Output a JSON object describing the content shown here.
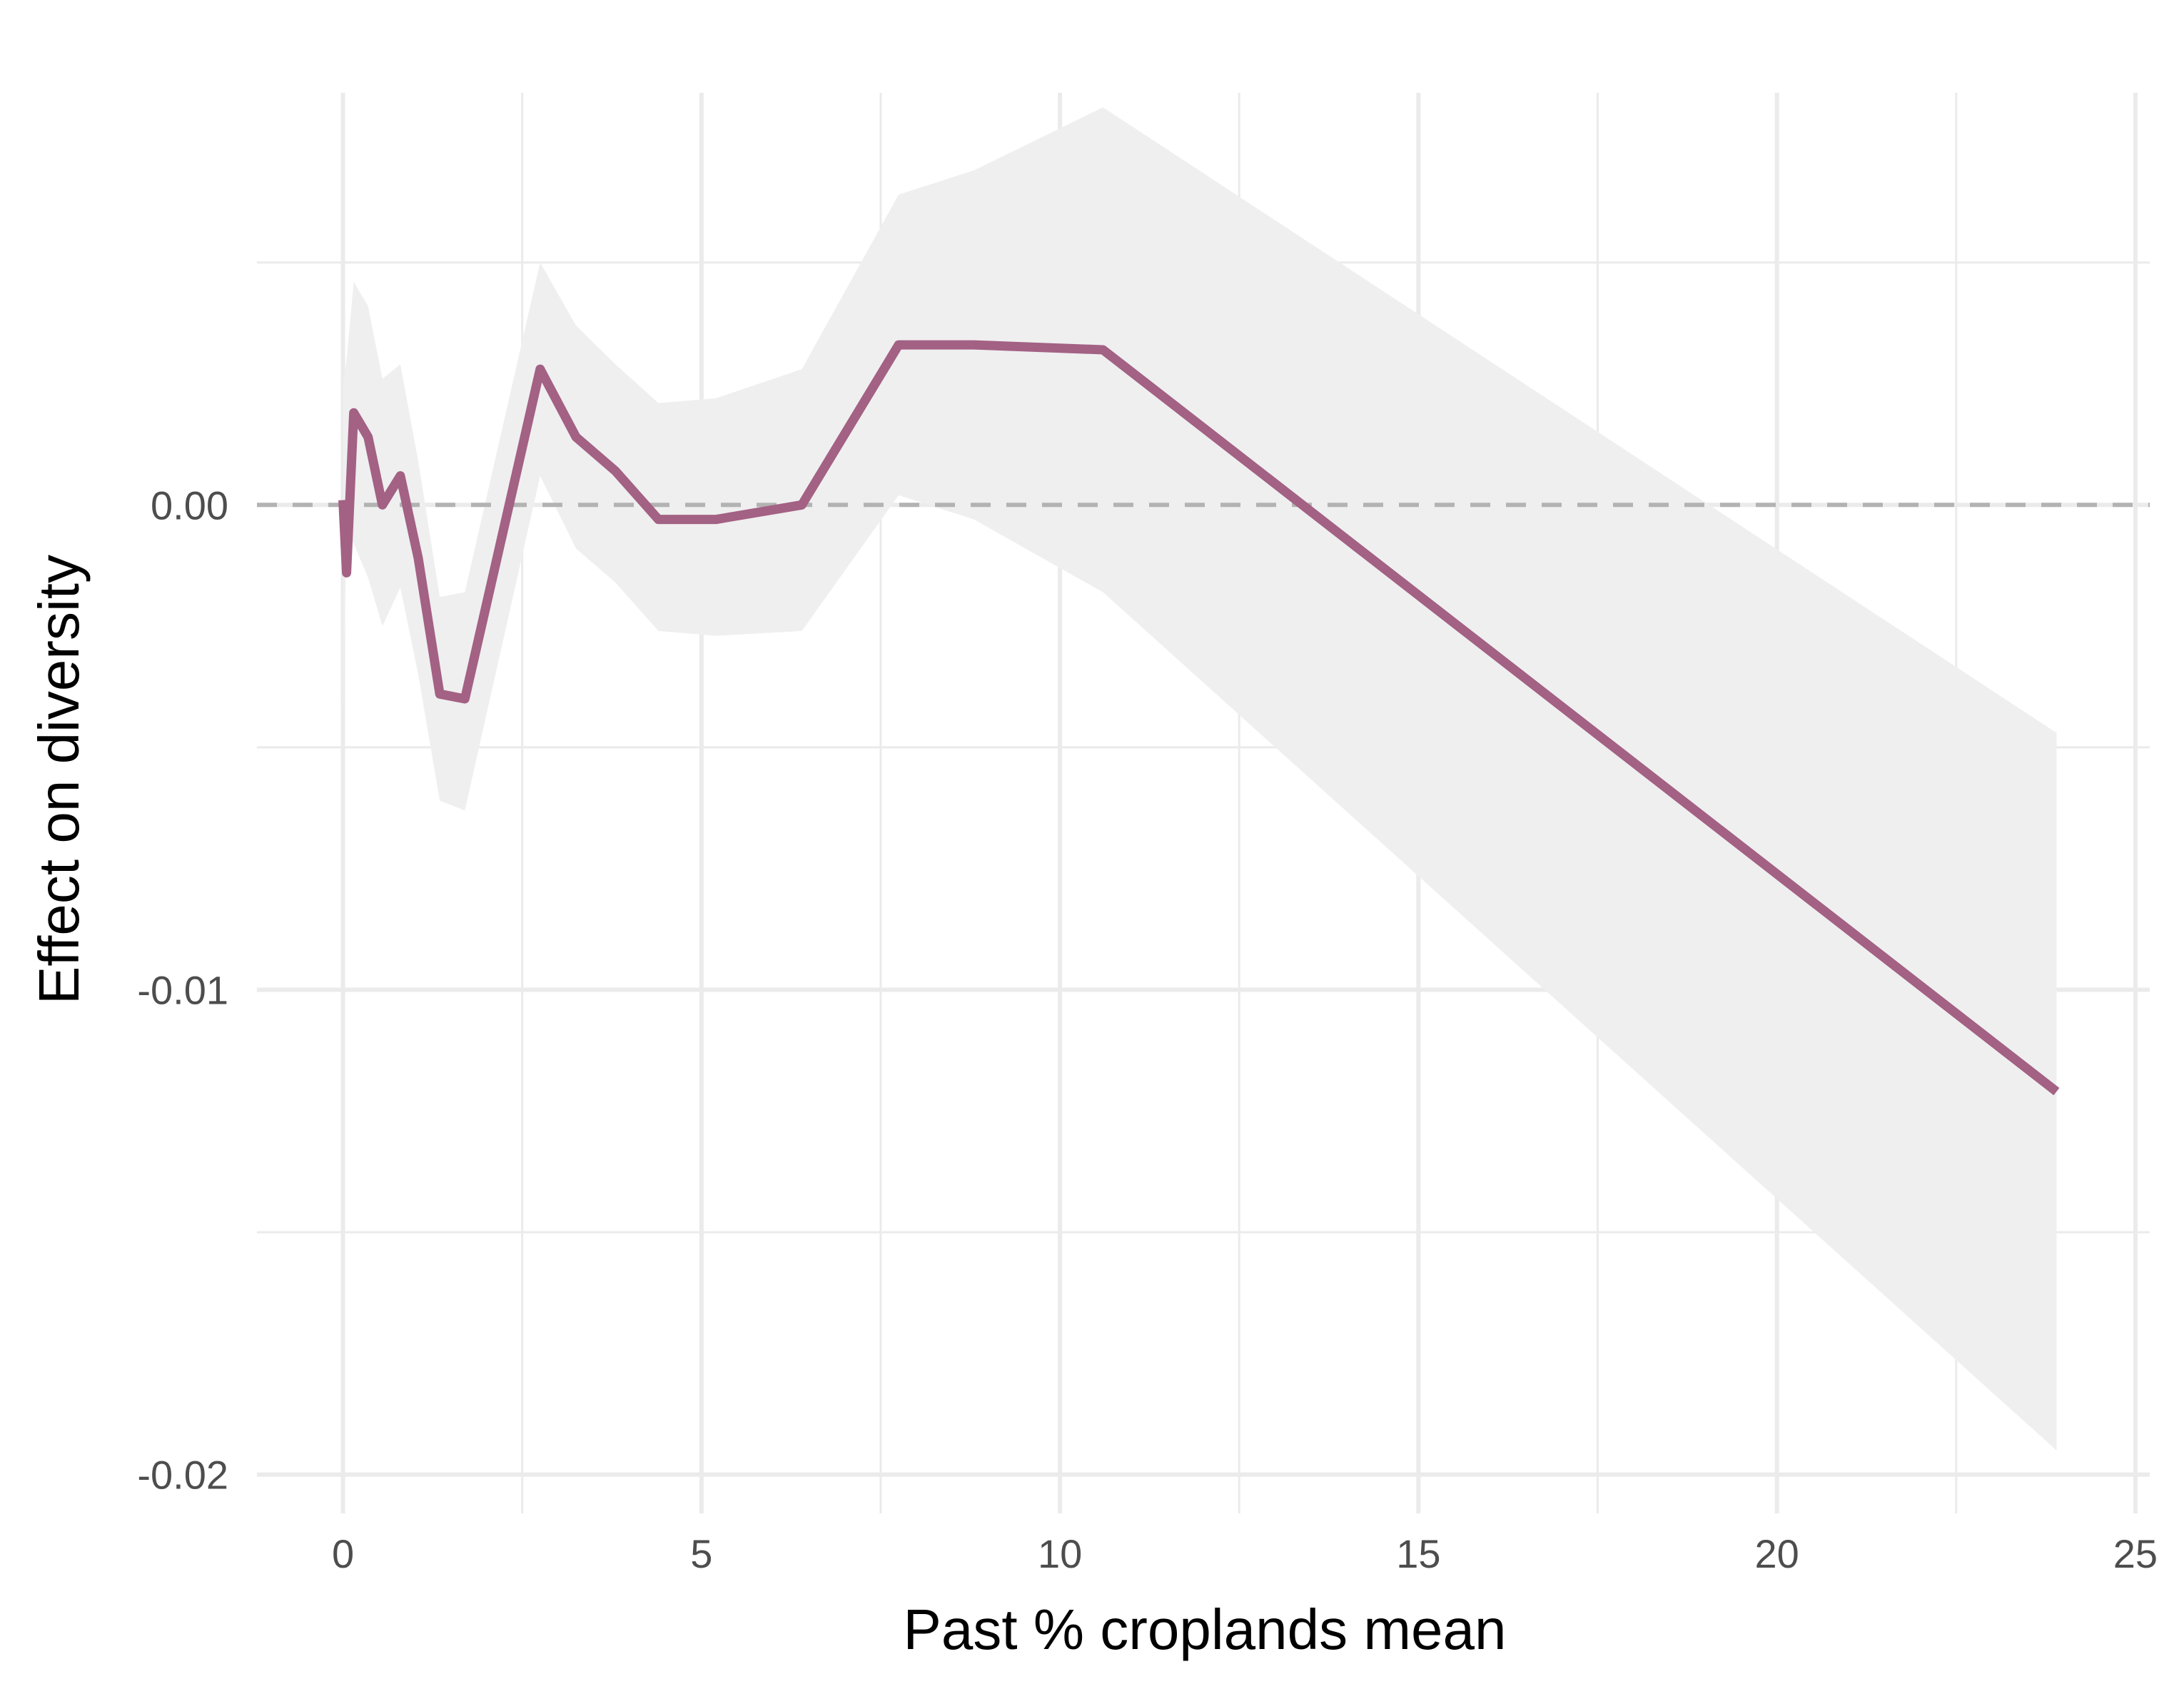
{
  "chart_data": {
    "type": "line",
    "title": "",
    "xlabel": "Past % croplands mean",
    "ylabel": "Effect on diversity",
    "xlim": [
      -1.2,
      25.2
    ],
    "ylim": [
      -0.0208,
      0.0085
    ],
    "x_ticks": [
      0,
      5,
      10,
      15,
      20,
      25
    ],
    "x_tick_labels": [
      "0",
      "5",
      "10",
      "15",
      "20",
      "25"
    ],
    "x_minor_ticks": [
      2.5,
      7.5,
      12.5,
      17.5,
      22.5
    ],
    "y_ticks": [
      -0.02,
      -0.01,
      0.0
    ],
    "y_tick_labels": [
      "-0.02",
      "-0.01",
      "0.00"
    ],
    "y_minor_ticks": [
      -0.015,
      -0.005,
      0.005
    ],
    "grid": true,
    "legend": "none",
    "reference_line": {
      "y": 0,
      "style": "dashed",
      "color": "#b3b3b3"
    },
    "line_color": "#a36184",
    "band_color": "#efefef",
    "series": [
      {
        "x": [
          0.0,
          0.05,
          0.15,
          0.35,
          0.55,
          0.8,
          1.05,
          1.35,
          1.7,
          2.75,
          3.25,
          3.8,
          4.4,
          5.2,
          6.4,
          7.75,
          8.8,
          10.6,
          23.9
        ],
        "y": [
          0.0001,
          -0.0014,
          0.0019,
          0.0014,
          0.0,
          0.0006,
          -0.0011,
          -0.0039,
          -0.004,
          0.0028,
          0.0014,
          0.0007,
          -0.0003,
          -0.0003,
          0.0,
          0.0033,
          0.0033,
          0.0032,
          -0.0121
        ],
        "lower": [
          -0.0045,
          -0.0005,
          -0.0008,
          -0.0015,
          -0.0025,
          -0.0017,
          -0.0035,
          -0.0061,
          -0.0063,
          0.0006,
          -0.0009,
          -0.0016,
          -0.0026,
          -0.0027,
          -0.0026,
          0.0002,
          -0.0003,
          -0.0018,
          -0.0195
        ],
        "upper": [
          0.0025,
          0.003,
          0.0046,
          0.0041,
          0.0026,
          0.0029,
          0.0009,
          -0.0019,
          -0.0018,
          0.005,
          0.0037,
          0.0029,
          0.0021,
          0.0022,
          0.0028,
          0.0064,
          0.0069,
          0.0082,
          -0.0047
        ]
      }
    ]
  }
}
